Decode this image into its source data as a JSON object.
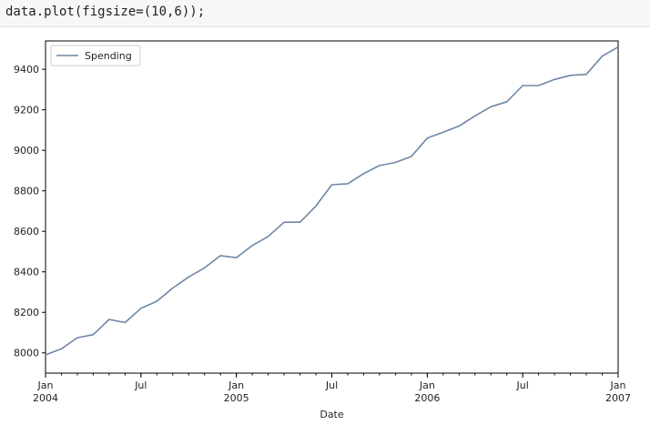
{
  "code_cell": {
    "text": "data.plot(figsize=(10,6));"
  },
  "colors": {
    "series_line": "#6f87a3",
    "axes": "#000000",
    "background": "#ffffff"
  },
  "chart_data": {
    "type": "line",
    "title": "",
    "xlabel": "Date",
    "ylabel": "",
    "grid": false,
    "legend_position": "top-left",
    "ylim": [
      7900,
      9540
    ],
    "xlim": [
      "2004-01",
      "2007-01"
    ],
    "y_ticks": [
      "8000",
      "8200",
      "8400",
      "8600",
      "8800",
      "9000",
      "9200",
      "9400"
    ],
    "x_major_ticks": [
      {
        "date": "2004-01",
        "line1": "Jan",
        "line2": "2004"
      },
      {
        "date": "2004-07",
        "line1": "Jul",
        "line2": ""
      },
      {
        "date": "2005-01",
        "line1": "Jan",
        "line2": "2005"
      },
      {
        "date": "2005-07",
        "line1": "Jul",
        "line2": ""
      },
      {
        "date": "2006-01",
        "line1": "Jan",
        "line2": "2006"
      },
      {
        "date": "2006-07",
        "line1": "Jul",
        "line2": ""
      },
      {
        "date": "2007-01",
        "line1": "Jan",
        "line2": "2007"
      }
    ],
    "series": [
      {
        "name": "Spending",
        "x": [
          "2004-01",
          "2004-02",
          "2004-03",
          "2004-04",
          "2004-05",
          "2004-06",
          "2004-07",
          "2004-08",
          "2004-09",
          "2004-10",
          "2004-11",
          "2004-12",
          "2005-01",
          "2005-02",
          "2005-03",
          "2005-04",
          "2005-05",
          "2005-06",
          "2005-07",
          "2005-08",
          "2005-09",
          "2005-10",
          "2005-11",
          "2005-12",
          "2006-01",
          "2006-02",
          "2006-03",
          "2006-04",
          "2006-05",
          "2006-06",
          "2006-07",
          "2006-08",
          "2006-09",
          "2006-10",
          "2006-11",
          "2006-12",
          "2007-01"
        ],
        "values": [
          7990,
          8020,
          8075,
          8090,
          8165,
          8150,
          8220,
          8255,
          8320,
          8375,
          8420,
          8480,
          8470,
          8530,
          8575,
          8645,
          8645,
          8725,
          8830,
          8835,
          8885,
          8925,
          8940,
          8970,
          9060,
          9090,
          9120,
          9170,
          9215,
          9240,
          9320,
          9320,
          9350,
          9370,
          9375,
          9465,
          9510
        ]
      }
    ]
  }
}
